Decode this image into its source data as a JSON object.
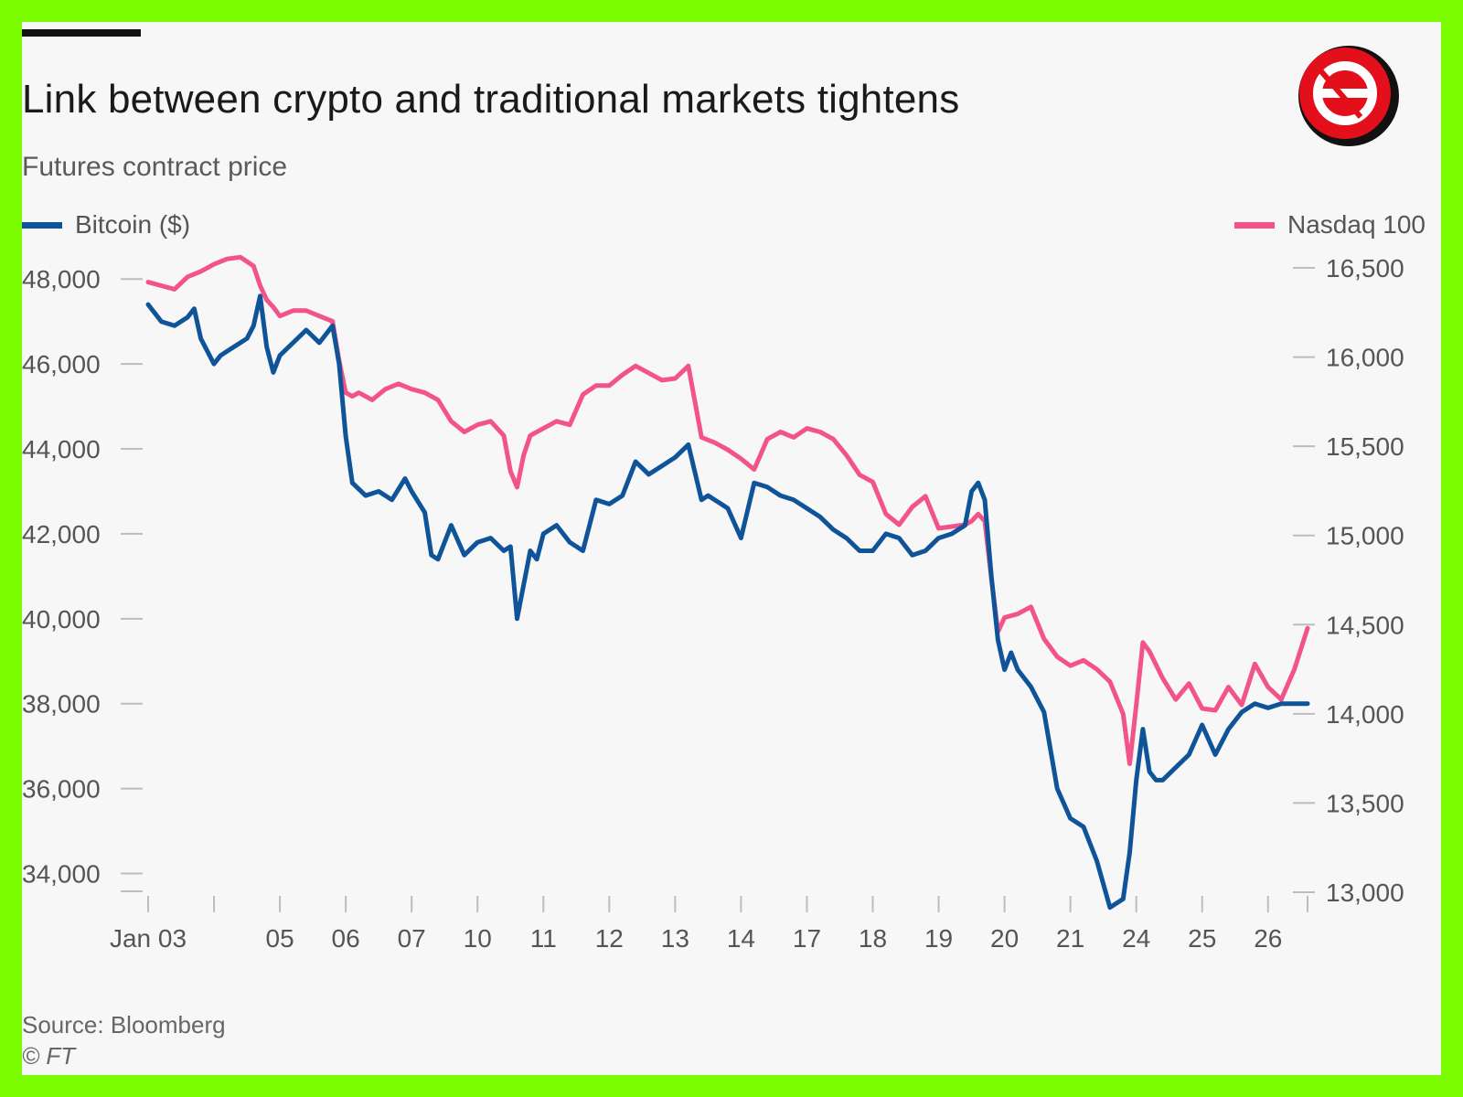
{
  "header": {
    "title": "Link between crypto and traditional markets tightens",
    "subtitle": "Futures contract price"
  },
  "footer": {
    "source": "Source: Bloomberg",
    "copyright": "© FT"
  },
  "logo": {
    "icon": "brand-e-logo-icon",
    "color": "#e3101c"
  },
  "colors": {
    "bitcoin": "#0f5499",
    "nasdaq": "#f2548a",
    "axis": "#bdbdbd",
    "background": "#f7f7f7"
  },
  "chart_data": {
    "type": "line",
    "title": "Link between crypto and traditional markets tightens",
    "subtitle": "Futures contract price",
    "categories": [
      "Jan 03",
      "",
      "05",
      "06",
      "07",
      "10",
      "11",
      "12",
      "13",
      "14",
      "17",
      "18",
      "19",
      "20",
      "21",
      "24",
      "25",
      "26"
    ],
    "x_range": [
      0,
      17.6
    ],
    "left_axis": {
      "label": "Bitcoin ($)",
      "ylim": [
        33000,
        48500
      ],
      "ticks": [
        48000,
        46000,
        44000,
        42000,
        40000,
        38000,
        36000,
        34000
      ],
      "tick_labels": [
        "48,000",
        "46,000",
        "44,000",
        "42,000",
        "40,000",
        "38,000",
        "36,000",
        "34,000"
      ]
    },
    "right_axis": {
      "label": "Nasdaq 100",
      "ylim": [
        13000,
        16500
      ],
      "ticks": [
        16500,
        16000,
        15500,
        15000,
        14500,
        14000,
        13500,
        13000
      ],
      "tick_labels": [
        "16,500",
        "16,000",
        "15,500",
        "15,000",
        "14,500",
        "14,000",
        "13,500",
        "13,000"
      ]
    },
    "legend": [
      {
        "name": "Bitcoin ($)",
        "axis": "left",
        "position": "top-left"
      },
      {
        "name": "Nasdaq 100",
        "axis": "right",
        "position": "top-right"
      }
    ],
    "series": [
      {
        "name": "Bitcoin ($)",
        "axis": "left",
        "x": [
          0,
          0.2,
          0.4,
          0.6,
          0.7,
          0.8,
          0.9,
          1.0,
          1.1,
          1.3,
          1.5,
          1.6,
          1.7,
          1.8,
          1.9,
          2.0,
          2.2,
          2.4,
          2.6,
          2.8,
          2.9,
          3.0,
          3.1,
          3.3,
          3.5,
          3.7,
          3.9,
          4.0,
          4.2,
          4.3,
          4.4,
          4.6,
          4.8,
          5.0,
          5.2,
          5.4,
          5.5,
          5.6,
          5.7,
          5.8,
          5.9,
          6.0,
          6.2,
          6.4,
          6.6,
          6.8,
          7.0,
          7.2,
          7.4,
          7.6,
          7.8,
          8.0,
          8.2,
          8.4,
          8.5,
          8.6,
          8.7,
          8.8,
          9.0,
          9.2,
          9.4,
          9.5,
          9.6,
          9.8,
          10.0,
          10.2,
          10.4,
          10.6,
          10.8,
          11.0,
          11.2,
          11.4,
          11.6,
          11.8,
          12.0,
          12.2,
          12.4,
          12.5,
          12.6,
          12.7,
          12.8,
          12.9,
          13.0,
          13.1,
          13.2,
          13.4,
          13.6,
          13.8,
          14.0,
          14.2,
          14.4,
          14.6,
          14.8,
          14.9,
          15.0,
          15.1,
          15.2,
          15.3,
          15.4,
          15.6,
          15.8,
          16.0,
          16.2,
          16.4,
          16.6,
          16.8,
          17.0,
          17.2,
          17.4,
          17.6
        ],
        "y": [
          47400,
          47000,
          46900,
          47100,
          47300,
          46600,
          46300,
          46000,
          46200,
          46400,
          46600,
          46900,
          47600,
          46400,
          45800,
          46200,
          46500,
          46800,
          46500,
          46900,
          46000,
          44300,
          43200,
          42900,
          43000,
          42800,
          43300,
          43000,
          42500,
          41500,
          41400,
          42200,
          41500,
          41800,
          41900,
          41600,
          41700,
          40000,
          40800,
          41600,
          41400,
          42000,
          42200,
          41800,
          41600,
          42800,
          42700,
          42900,
          43700,
          43400,
          43600,
          43800,
          44100,
          42800,
          42900,
          42800,
          42700,
          42600,
          41900,
          43200,
          43100,
          43000,
          42900,
          42800,
          42600,
          42400,
          42100,
          41900,
          41600,
          41600,
          42000,
          41900,
          41500,
          41600,
          41900,
          42000,
          42200,
          43000,
          43200,
          42800,
          41000,
          39500,
          38800,
          39200,
          38800,
          38400,
          37800,
          36000,
          35300,
          35100,
          34300,
          33200,
          33400,
          34500,
          36200,
          37400,
          36400,
          36200,
          36200,
          36500,
          36800,
          37500,
          36800,
          37400,
          37800,
          38000,
          37900,
          38000,
          38000,
          38000
        ]
      },
      {
        "name": "Nasdaq 100",
        "axis": "right",
        "x": [
          0,
          0.2,
          0.4,
          0.6,
          0.8,
          1.0,
          1.2,
          1.4,
          1.6,
          1.7,
          1.8,
          1.9,
          2.0,
          2.2,
          2.4,
          2.6,
          2.8,
          2.9,
          3.0,
          3.1,
          3.2,
          3.4,
          3.6,
          3.8,
          4.0,
          4.2,
          4.4,
          4.6,
          4.8,
          5.0,
          5.2,
          5.4,
          5.5,
          5.6,
          5.7,
          5.8,
          6.0,
          6.2,
          6.4,
          6.6,
          6.8,
          7.0,
          7.2,
          7.4,
          7.6,
          7.8,
          8.0,
          8.2,
          8.4,
          8.6,
          8.8,
          9.0,
          9.2,
          9.4,
          9.6,
          9.8,
          10.0,
          10.2,
          10.4,
          10.6,
          10.8,
          11.0,
          11.2,
          11.4,
          11.6,
          11.8,
          12.0,
          12.2,
          12.4,
          12.5,
          12.6,
          12.7,
          12.8,
          12.9,
          13.0,
          13.2,
          13.4,
          13.6,
          13.8,
          14.0,
          14.2,
          14.4,
          14.6,
          14.8,
          14.9,
          15.0,
          15.1,
          15.2,
          15.4,
          15.6,
          15.8,
          16.0,
          16.2,
          16.4,
          16.6,
          16.8,
          17.0,
          17.2,
          17.4,
          17.6
        ],
        "y": [
          16420,
          16400,
          16380,
          16450,
          16480,
          16520,
          16550,
          16560,
          16510,
          16400,
          16320,
          16280,
          16230,
          16260,
          16260,
          16230,
          16200,
          15980,
          15800,
          15780,
          15800,
          15760,
          15820,
          15850,
          15820,
          15800,
          15760,
          15640,
          15580,
          15620,
          15640,
          15560,
          15360,
          15270,
          15450,
          15560,
          15600,
          15640,
          15620,
          15790,
          15840,
          15840,
          15900,
          15950,
          15910,
          15870,
          15880,
          15950,
          15550,
          15520,
          15480,
          15430,
          15370,
          15540,
          15580,
          15550,
          15600,
          15580,
          15540,
          15450,
          15340,
          15300,
          15120,
          15060,
          15160,
          15220,
          15040,
          15050,
          15060,
          15080,
          15120,
          15080,
          14760,
          14460,
          14540,
          14560,
          14600,
          14420,
          14320,
          14270,
          14300,
          14250,
          14180,
          14000,
          13720,
          14050,
          14400,
          14350,
          14200,
          14080,
          14170,
          14030,
          14020,
          14150,
          14050,
          14280,
          14150,
          14080,
          14250,
          14480
        ]
      }
    ]
  }
}
